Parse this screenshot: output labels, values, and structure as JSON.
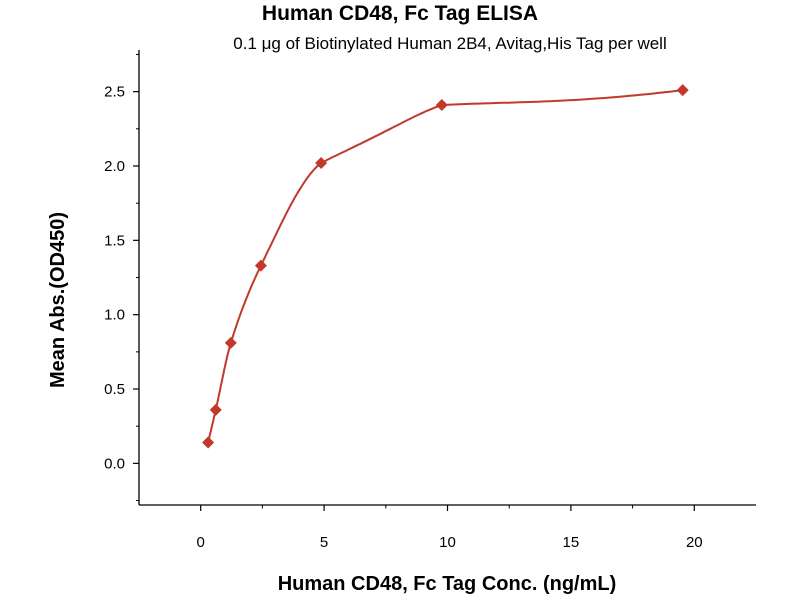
{
  "chart_data": {
    "type": "scatter",
    "title": "Human CD48, Fc Tag ELISA",
    "subtitle": "0.1 μg of Biotinylated Human 2B4, Avitag,His Tag per well",
    "xlabel": "Human CD48, Fc Tag Conc. (ng/mL)",
    "ylabel": "Mean Abs.(OD450)",
    "xlim": [
      -2.5,
      22.5
    ],
    "ylim": [
      -0.28,
      2.78
    ],
    "x_ticks": [
      0,
      5,
      10,
      15,
      20
    ],
    "y_ticks": [
      0.0,
      0.5,
      1.0,
      1.5,
      2.0,
      2.5
    ],
    "x_tick_labels": [
      "0",
      "5",
      "10",
      "15",
      "20"
    ],
    "y_tick_labels": [
      "0.0",
      "0.5",
      "1.0",
      "1.5",
      "2.0",
      "2.5"
    ],
    "grid": false,
    "series": [
      {
        "x": [
          0.3,
          0.61,
          1.22,
          2.44,
          4.88,
          9.77,
          19.53
        ],
        "y": [
          0.14,
          0.36,
          0.81,
          1.33,
          2.02,
          2.41,
          2.51
        ],
        "color": "#c0392b",
        "marker": "diamond"
      }
    ],
    "fit_curve": {
      "type": "sigmoidal",
      "color": "#c0392b"
    }
  }
}
